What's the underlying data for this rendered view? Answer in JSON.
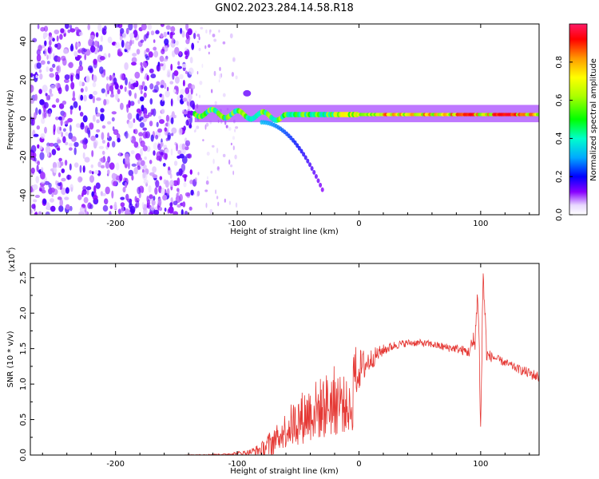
{
  "title": "GN02.2023.284.14.58.R18",
  "top_panel": {
    "ylabel": "Frequency (Hz)",
    "xlabel": "Height of straight line (km)",
    "colorbar_label": "Normalized spectral amplitude",
    "colorbar_ticks": [
      "0.0",
      "0.2",
      "0.4",
      "0.6",
      "0.8"
    ]
  },
  "bottom_panel": {
    "ylabel": "SNR (10 * v/v)",
    "xlabel": "Height of straight line (km)",
    "multiplier_base": "(x10",
    "multiplier_exp": "4",
    "multiplier_close": ")"
  },
  "chart_data": [
    {
      "type": "heatmap",
      "xlabel": "Height of straight line (km)",
      "ylabel": "Frequency (Hz)",
      "xlim": [
        -270,
        148
      ],
      "ylim": [
        -50,
        49
      ],
      "xticks": [
        "-200",
        "-100",
        "0",
        "100"
      ],
      "xtick_values": [
        -200,
        -100,
        0,
        100
      ],
      "yticks": [
        "40",
        "20",
        "0",
        "-20",
        "-40"
      ],
      "ytick_values": [
        40,
        20,
        0,
        -20,
        -40
      ],
      "colorbar": {
        "label": "Normalized spectral amplitude",
        "range": [
          0,
          1
        ],
        "ticks": [
          0.0,
          0.2,
          0.4,
          0.6,
          0.8
        ]
      },
      "features": {
        "noise_region_x": [
          -270,
          -135
        ],
        "sparse_noise_x": [
          -135,
          -100
        ],
        "main_line": {
          "x_range": [
            -135,
            148
          ],
          "center_freq_hz": 2,
          "peak_amplitude": 0.95
        },
        "secondary_branch": {
          "x_range": [
            -80,
            -30
          ],
          "freq_range_hz": [
            -2,
            -37
          ]
        }
      }
    },
    {
      "type": "line",
      "xlabel": "Height of straight line (km)",
      "ylabel": "SNR (10 * v/v)",
      "xlim": [
        -270,
        148
      ],
      "ylim": [
        0,
        2.7
      ],
      "y_multiplier": 10000,
      "xticks": [
        "-200",
        "-100",
        "0",
        "100"
      ],
      "xtick_values": [
        -200,
        -100,
        0,
        100
      ],
      "yticks": [
        "0.0",
        "0.5",
        "1.0",
        "1.5",
        "2.0",
        "2.5"
      ],
      "ytick_values": [
        0.0,
        0.5,
        1.0,
        1.5,
        2.0,
        2.5
      ],
      "series": [
        {
          "color": "#e53935",
          "x": [
            -270,
            -200,
            -150,
            -110,
            -90,
            -80,
            -70,
            -60,
            -50,
            -40,
            -30,
            -20,
            -15,
            -10,
            0,
            10,
            20,
            30,
            40,
            50,
            60,
            70,
            80,
            90,
            95,
            98,
            100,
            102,
            105,
            110,
            120,
            130,
            140,
            148
          ],
          "y": [
            0.0,
            0.0,
            0.0,
            0.01,
            0.04,
            0.08,
            0.18,
            0.3,
            0.45,
            0.6,
            0.72,
            0.85,
            0.95,
            1.05,
            1.2,
            1.35,
            1.48,
            1.55,
            1.58,
            1.58,
            1.56,
            1.52,
            1.5,
            1.45,
            1.6,
            2.3,
            0.3,
            2.6,
            1.4,
            1.38,
            1.3,
            1.22,
            1.15,
            1.1
          ],
          "noise_amplitude": [
            0,
            0,
            0,
            0.01,
            0.04,
            0.1,
            0.25,
            0.45,
            0.6,
            0.7,
            0.75,
            0.85,
            0.8,
            0.6,
            0.3,
            0.15,
            0.08,
            0.06,
            0.05,
            0.05,
            0.05,
            0.06,
            0.06,
            0.08,
            0.2,
            0.3,
            0.1,
            0.3,
            0.12,
            0.06,
            0.06,
            0.06,
            0.08,
            0.08
          ]
        }
      ]
    }
  ]
}
